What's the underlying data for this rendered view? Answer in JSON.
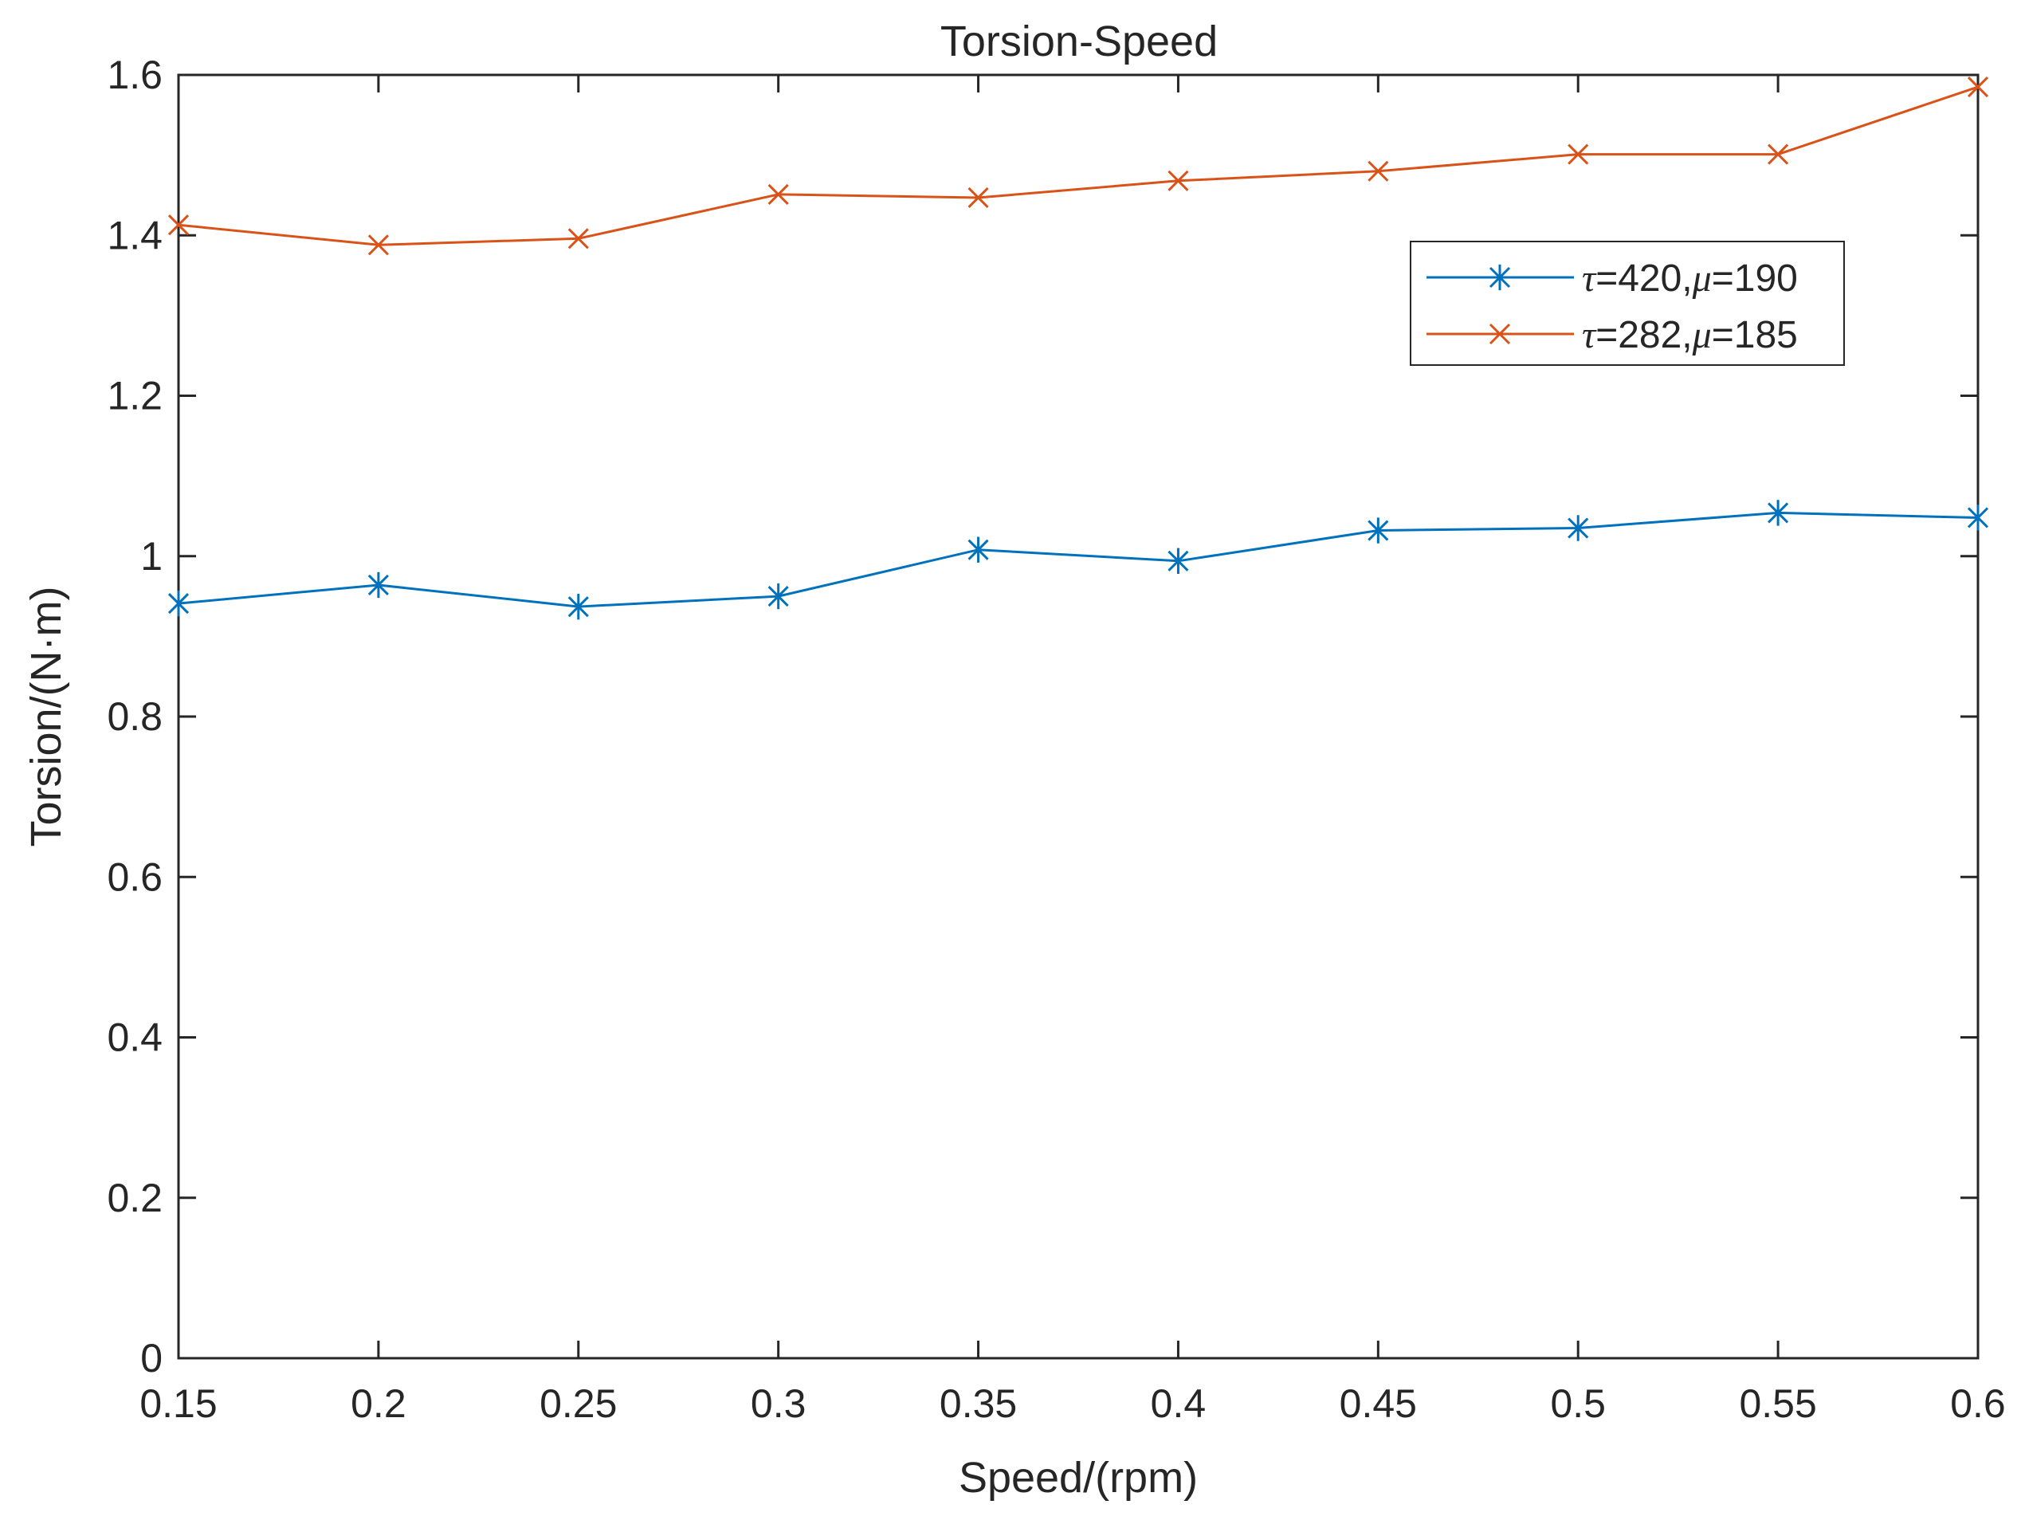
{
  "chart_data": {
    "type": "line",
    "title": "Torsion-Speed",
    "xlabel": "Speed/(rpm)",
    "ylabel": "Torsion/(N·m)",
    "xlim": [
      0.15,
      0.6
    ],
    "ylim": [
      0,
      1.6
    ],
    "xticks": [
      0.15,
      0.2,
      0.25,
      0.3,
      0.35,
      0.4,
      0.45,
      0.5,
      0.55,
      0.6
    ],
    "xtick_labels": [
      "0.15",
      "0.2",
      "0.25",
      "0.3",
      "0.35",
      "0.4",
      "0.45",
      "0.5",
      "0.55",
      "0.6"
    ],
    "yticks": [
      0,
      0.2,
      0.4,
      0.6,
      0.8,
      1,
      1.2,
      1.4,
      1.6
    ],
    "ytick_labels": [
      "0",
      "0.2",
      "0.4",
      "0.6",
      "0.8",
      "1",
      "1.2",
      "1.4",
      "1.6"
    ],
    "grid": false,
    "legend_position": "top-right",
    "x": [
      0.15,
      0.2,
      0.25,
      0.3,
      0.35,
      0.4,
      0.45,
      0.5,
      0.55,
      0.6
    ],
    "series": [
      {
        "name": "τ=420,μ=190",
        "sym1": "τ",
        "val1": "=420,",
        "sym2": "μ",
        "val2": "=190",
        "color": "#0072BD",
        "marker": "asterisk",
        "values": [
          0.941,
          0.964,
          0.937,
          0.95,
          1.008,
          0.994,
          1.032,
          1.035,
          1.054,
          1.048
        ]
      },
      {
        "name": "τ=282,μ=185",
        "sym1": "τ",
        "val1": "=282,",
        "sym2": "μ",
        "val2": "=185",
        "color": "#D95319",
        "marker": "x",
        "values": [
          1.413,
          1.388,
          1.396,
          1.451,
          1.447,
          1.468,
          1.48,
          1.501,
          1.501,
          1.585
        ]
      }
    ]
  }
}
